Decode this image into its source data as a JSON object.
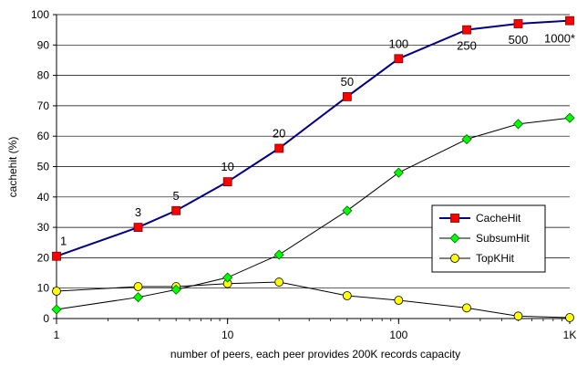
{
  "chart_data": {
    "type": "line",
    "xscale": "log",
    "xlabel": "number of peers, each peer provides 200K records capacity",
    "ylabel": "cachehit (%)",
    "xlim": [
      1,
      1000
    ],
    "ylim": [
      0,
      100
    ],
    "x_ticks": [
      {
        "value": 1,
        "label": "1"
      },
      {
        "value": 10,
        "label": "10"
      },
      {
        "value": 100,
        "label": "100"
      },
      {
        "value": 1000,
        "label": "1K"
      }
    ],
    "y_ticks": [
      0,
      10,
      20,
      30,
      40,
      50,
      60,
      70,
      80,
      90,
      100
    ],
    "grid": "y-major",
    "legend_position": "right",
    "series": [
      {
        "name": "CacheHit",
        "color": "#000080",
        "marker": "square",
        "marker_fill": "#ff0000",
        "line_width": 2,
        "x": [
          1,
          3,
          5,
          10,
          20,
          50,
          100,
          250,
          500,
          1000
        ],
        "y": [
          20.5,
          30,
          35.5,
          45,
          56,
          73,
          85.5,
          95,
          97,
          98
        ],
        "point_labels": [
          "1",
          "3",
          "5",
          "10",
          "20",
          "50",
          "100",
          "250",
          "500",
          "1000*"
        ]
      },
      {
        "name": "SubsumHit",
        "color": "#000000",
        "marker": "diamond",
        "marker_fill": "#00ff00",
        "line_width": 1,
        "x": [
          1,
          3,
          5,
          10,
          20,
          50,
          100,
          250,
          500,
          1000
        ],
        "y": [
          3,
          7,
          9.5,
          13.5,
          21,
          35.5,
          48,
          59,
          64,
          66
        ]
      },
      {
        "name": "TopKHit",
        "color": "#000000",
        "marker": "circle",
        "marker_fill": "#ffff00",
        "line_width": 1,
        "x": [
          1,
          3,
          5,
          10,
          20,
          50,
          100,
          250,
          500,
          1000
        ],
        "y": [
          9,
          10.5,
          10.5,
          11.5,
          12,
          7.5,
          6,
          3.5,
          0.8,
          0.3
        ]
      }
    ]
  }
}
